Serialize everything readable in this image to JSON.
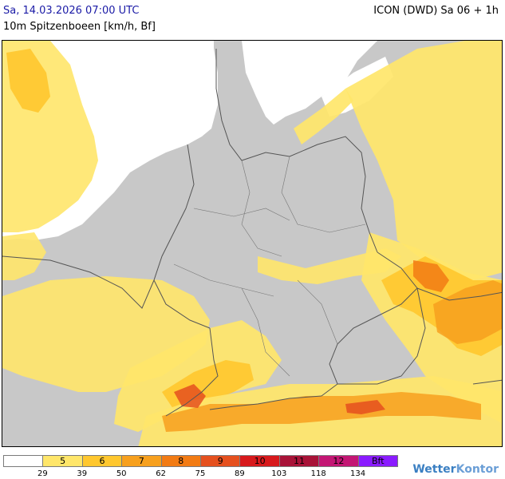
{
  "header": {
    "date_line": "Sa, 14.03.2026 07:00 UTC",
    "subtitle": "10m Spitzenboeen [km/h, Bf]",
    "model_line": "ICON (DWD) Sa 06 + 1h"
  },
  "legend": {
    "bf_label": "Bft",
    "swatches": [
      {
        "label": "",
        "color": "#ffffff"
      },
      {
        "label": "5",
        "color": "#ffe66a"
      },
      {
        "label": "6",
        "color": "#ffc72e"
      },
      {
        "label": "7",
        "color": "#f7a01e"
      },
      {
        "label": "8",
        "color": "#f27b14"
      },
      {
        "label": "9",
        "color": "#e5501e"
      },
      {
        "label": "10",
        "color": "#d7191c"
      },
      {
        "label": "11",
        "color": "#a81338"
      },
      {
        "label": "12",
        "color": "#c31674"
      },
      {
        "label": "Bft",
        "color": "#8a1bff"
      }
    ],
    "ticks": [
      "29",
      "39",
      "50",
      "62",
      "75",
      "89",
      "103",
      "118",
      "134"
    ]
  },
  "brand": {
    "part1": "Wetter",
    "part2": "Kontor"
  },
  "colors": {
    "land": "#c8c8c8",
    "sea": "#ffffff",
    "borders": "#555555"
  },
  "icons": [
    "wetterkontor-logo-icon"
  ]
}
